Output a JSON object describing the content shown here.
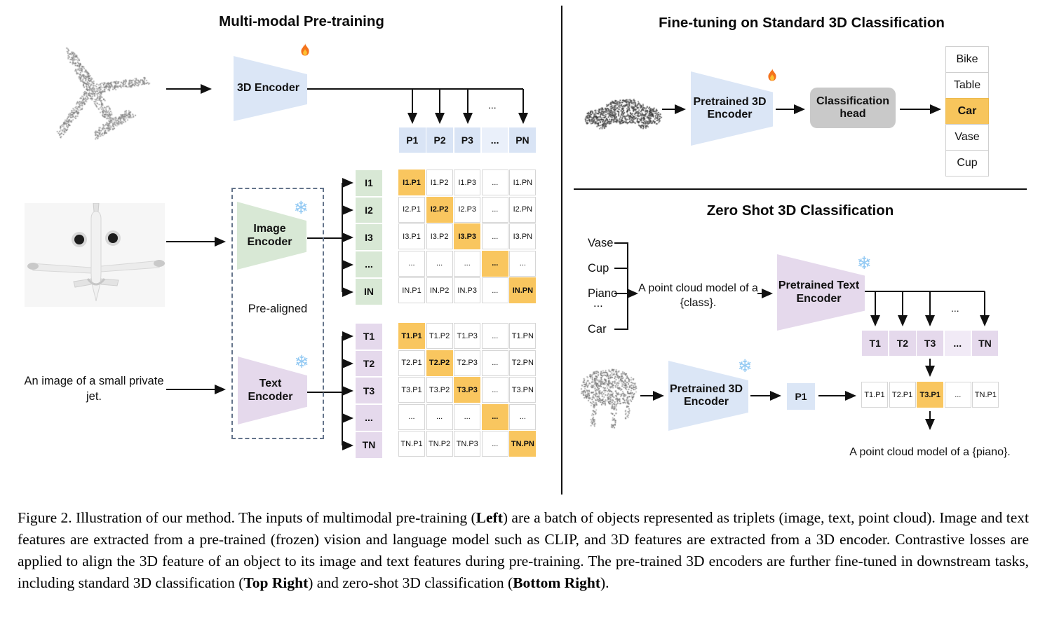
{
  "figure": {
    "left_panel": {
      "title": "Multi-modal Pre-training",
      "encoder_3d_label": "3D Encoder",
      "image_encoder_label": "Image Encoder",
      "text_encoder_label": "Text Encoder",
      "prealigned_label": "Pre-aligned",
      "text_input": "An image of a small private jet.",
      "dots": "...",
      "p_row": [
        "P1",
        "P2",
        "P3",
        "...",
        "PN"
      ],
      "i_labels": [
        "I1",
        "I2",
        "I3",
        "...",
        "IN"
      ],
      "t_labels": [
        "T1",
        "T2",
        "T3",
        "...",
        "TN"
      ],
      "ip_matrix": [
        [
          "I1.P1",
          "I1.P2",
          "I1.P3",
          "...",
          "I1.PN"
        ],
        [
          "I2.P1",
          "I2.P2",
          "I2.P3",
          "...",
          "I2.PN"
        ],
        [
          "I3.P1",
          "I3.P2",
          "I3.P3",
          "...",
          "I3.PN"
        ],
        [
          "...",
          "...",
          "...",
          "...",
          "..."
        ],
        [
          "IN.P1",
          "IN.P2",
          "IN.P3",
          "...",
          "IN.PN"
        ]
      ],
      "tp_matrix": [
        [
          "T1.P1",
          "T1.P2",
          "T1.P3",
          "...",
          "T1.PN"
        ],
        [
          "T2.P1",
          "T2.P2",
          "T2.P3",
          "...",
          "T2.PN"
        ],
        [
          "T3.P1",
          "T3.P2",
          "T3.P3",
          "...",
          "T3.PN"
        ],
        [
          "...",
          "...",
          "...",
          "...",
          "..."
        ],
        [
          "TN.P1",
          "TN.P2",
          "TN.P3",
          "...",
          "TN.PN"
        ]
      ]
    },
    "top_right_panel": {
      "title": "Fine-tuning on Standard 3D Classification",
      "encoder_label": "Pretrained 3D Encoder",
      "head_label": "Classification head",
      "classes": [
        "Bike",
        "Table",
        "Car",
        "Vase",
        "Cup"
      ],
      "highlighted_class_index": 2
    },
    "bottom_right_panel": {
      "title": "Zero Shot 3D Classification",
      "class_prompts": [
        "Vase",
        "Cup",
        "Piano",
        "...",
        "Car"
      ],
      "prompt_text": "A point cloud model of a {class}.",
      "text_encoder_label": "Pretrained Text Encoder",
      "encoder_label": "Pretrained 3D Encoder",
      "p_box_label": "P1",
      "t_row": [
        "T1",
        "T2",
        "T3",
        "...",
        "TN"
      ],
      "similarity_row": [
        "T1.P1",
        "T2.P1",
        "T3.P1",
        "...",
        "TN.P1"
      ],
      "similarity_highlight_index": 2,
      "result_text": "A point cloud model of a {piano}.",
      "dots": "..."
    },
    "caption": {
      "segments": [
        {
          "text": "Figure 2. Illustration of our method. The inputs of multimodal pre-training (",
          "bold": false
        },
        {
          "text": "Left",
          "bold": true
        },
        {
          "text": ") are a batch of objects represented as triplets (image, text, point cloud). Image and text features are extracted from a pre-trained (frozen) vision and language model such as CLIP, and 3D features are extracted from a 3D encoder. Contrastive losses are applied to align the 3D feature of an object to its image and text features during pre-training. The pre-trained 3D encoders are further fine-tuned in downstream tasks, including standard 3D classification (",
          "bold": false
        },
        {
          "text": "Top Right",
          "bold": true
        },
        {
          "text": ") and zero-shot 3D classification (",
          "bold": false
        },
        {
          "text": "Bottom Right",
          "bold": true
        },
        {
          "text": ").",
          "bold": false
        }
      ]
    },
    "icons": {
      "trainable": "fire-icon",
      "frozen": "snowflake-icon",
      "snowflake_glyph": "❄"
    },
    "colors": {
      "encoder_blue": "#dbe6f6",
      "encoder_green": "#d8e8d5",
      "encoder_purple": "#e5d9ec",
      "highlight_orange": "#f9c65f",
      "head_gray": "#c9c9c9"
    }
  }
}
